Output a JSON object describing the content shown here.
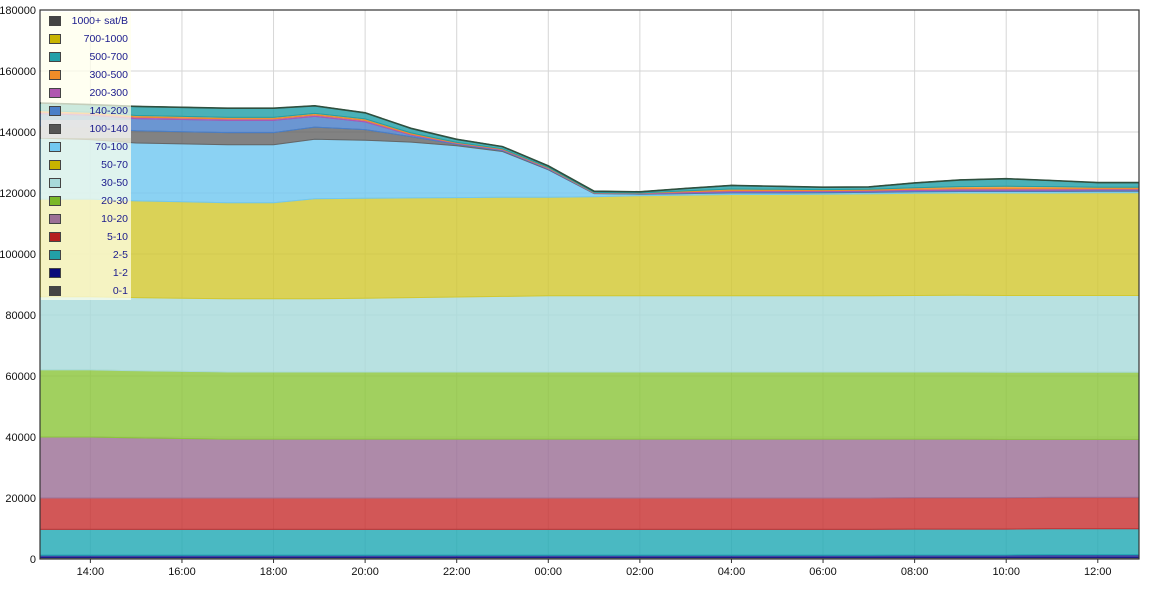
{
  "chart_data": {
    "type": "area",
    "stacked": true,
    "title": "",
    "xlabel": "",
    "ylabel": "",
    "ylim": [
      0,
      180000
    ],
    "yticks": [
      0,
      20000,
      40000,
      60000,
      80000,
      100000,
      120000,
      140000,
      160000,
      180000
    ],
    "ytick_labels": [
      "0",
      "20000",
      "40000",
      "60000",
      "80000",
      "100000",
      "120000",
      "140000",
      "160000",
      "180000"
    ],
    "xlim": [
      12.9,
      36.9
    ],
    "xticks": [
      14,
      16,
      18,
      20,
      22,
      24,
      26,
      28,
      30,
      32,
      34,
      36
    ],
    "xtick_labels": [
      "14:00",
      "16:00",
      "18:00",
      "20:00",
      "22:00",
      "00:00",
      "02:00",
      "04:00",
      "06:00",
      "08:00",
      "10:00",
      "12:00"
    ],
    "grid": true,
    "legend_position": "top-left",
    "x": [
      12.9,
      14,
      15,
      16,
      17,
      18,
      18.9,
      20,
      21,
      22,
      23,
      24,
      25,
      26,
      27,
      28,
      29,
      30,
      31,
      32,
      33,
      34,
      35,
      36,
      36.9
    ],
    "series": [
      {
        "name": "0-1",
        "color": "#555555",
        "values": [
          500,
          500,
          500,
          500,
          500,
          500,
          500,
          500,
          500,
          500,
          500,
          500,
          500,
          500,
          500,
          500,
          500,
          500,
          500,
          500,
          500,
          500,
          500,
          500,
          500
        ]
      },
      {
        "name": "1-2",
        "color": "#1a1a8c",
        "values": [
          700,
          700,
          700,
          700,
          700,
          700,
          700,
          700,
          700,
          700,
          700,
          700,
          700,
          700,
          700,
          700,
          700,
          700,
          700,
          800,
          800,
          800,
          900,
          900,
          900
        ]
      },
      {
        "name": "2-5",
        "color": "#22a9b5",
        "values": [
          8500,
          8500,
          8500,
          8500,
          8500,
          8500,
          8500,
          8500,
          8500,
          8500,
          8500,
          8500,
          8500,
          8500,
          8500,
          8500,
          8500,
          8500,
          8500,
          8500,
          8500,
          8500,
          8500,
          8500,
          8500
        ]
      },
      {
        "name": "5-10",
        "color": "#c83232",
        "values": [
          10300,
          10300,
          10300,
          10300,
          10300,
          10300,
          10300,
          10300,
          10300,
          10300,
          10300,
          10300,
          10300,
          10300,
          10300,
          10300,
          10300,
          10300,
          10300,
          10300,
          10300,
          10300,
          10300,
          10300,
          10300
        ]
      },
      {
        "name": "10-20",
        "color": "#9c7096",
        "values": [
          20000,
          20000,
          19700,
          19500,
          19300,
          19300,
          19300,
          19300,
          19300,
          19300,
          19300,
          19300,
          19300,
          19300,
          19300,
          19300,
          19300,
          19300,
          19300,
          19200,
          19200,
          19100,
          19000,
          19000,
          19000
        ]
      },
      {
        "name": "20-30",
        "color": "#8cc63c",
        "values": [
          22000,
          22000,
          22000,
          22000,
          22000,
          22000,
          22000,
          22000,
          22000,
          22000,
          22000,
          22000,
          22000,
          22000,
          22000,
          22000,
          22000,
          22000,
          22000,
          22000,
          22000,
          22000,
          22000,
          22000,
          22000
        ]
      },
      {
        "name": "30-50",
        "color": "#a8dada",
        "values": [
          24000,
          24000,
          24000,
          24000,
          24000,
          24000,
          24000,
          24200,
          24400,
          24600,
          24800,
          25000,
          25000,
          25000,
          25000,
          25000,
          25000,
          25000,
          25000,
          25100,
          25200,
          25200,
          25200,
          25200,
          25200
        ]
      },
      {
        "name": "50-70",
        "color": "#d2c832",
        "values": [
          32000,
          32000,
          31700,
          31600,
          31500,
          31500,
          32800,
          32800,
          32700,
          32600,
          32500,
          32300,
          32500,
          32800,
          33000,
          33200,
          33200,
          33300,
          33400,
          33500,
          33500,
          33600,
          33600,
          33700,
          33700
        ]
      },
      {
        "name": "70-100",
        "color": "#72c8f0",
        "values": [
          20000,
          19500,
          19000,
          19000,
          19000,
          19000,
          19500,
          19000,
          18300,
          17000,
          15000,
          9000,
          1000,
          500,
          500,
          500,
          500,
          500,
          500,
          500,
          500,
          500,
          500,
          500,
          500
        ]
      },
      {
        "name": "100-140",
        "color": "#666666",
        "values": [
          4000,
          4000,
          4000,
          4000,
          4000,
          4000,
          4000,
          3500,
          1800,
          500,
          300,
          200,
          100,
          100,
          100,
          100,
          100,
          100,
          100,
          100,
          100,
          100,
          100,
          100,
          100
        ]
      },
      {
        "name": "140-200",
        "color": "#4a7fc8",
        "values": [
          4000,
          4000,
          4000,
          4000,
          4000,
          4000,
          3500,
          2500,
          500,
          200,
          200,
          200,
          100,
          100,
          200,
          300,
          300,
          300,
          300,
          300,
          300,
          300,
          300,
          300,
          300
        ]
      },
      {
        "name": "200-300",
        "color": "#b056b0",
        "values": [
          500,
          500,
          500,
          500,
          500,
          500,
          500,
          500,
          300,
          200,
          200,
          200,
          100,
          100,
          300,
          400,
          400,
          300,
          300,
          400,
          500,
          500,
          500,
          400,
          400
        ]
      },
      {
        "name": "300-500",
        "color": "#f08c28",
        "values": [
          500,
          500,
          500,
          500,
          500,
          500,
          500,
          500,
          400,
          200,
          200,
          200,
          100,
          100,
          300,
          500,
          400,
          300,
          300,
          500,
          700,
          800,
          700,
          500,
          500
        ]
      },
      {
        "name": "500-700",
        "color": "#22a0a8",
        "values": [
          2500,
          2500,
          3000,
          3000,
          3000,
          3000,
          2500,
          2000,
          1500,
          1000,
          700,
          500,
          400,
          400,
          800,
          1200,
          1000,
          800,
          800,
          1600,
          2200,
          2500,
          2000,
          1500,
          1500
        ]
      },
      {
        "name": "700-1000",
        "color": "#c8b400",
        "values": [
          0,
          0,
          0,
          0,
          0,
          0,
          0,
          0,
          0,
          0,
          0,
          0,
          0,
          0,
          0,
          0,
          0,
          0,
          0,
          0,
          0,
          0,
          0,
          0,
          0
        ]
      },
      {
        "name": "1000+ sat/B",
        "color": "#444444",
        "values": [
          0,
          0,
          0,
          0,
          0,
          0,
          0,
          0,
          0,
          0,
          0,
          0,
          0,
          0,
          0,
          0,
          0,
          0,
          0,
          0,
          0,
          0,
          0,
          0,
          0
        ]
      }
    ]
  },
  "legend": {
    "items": [
      {
        "label": "1000+ sat/B",
        "color": "#444444"
      },
      {
        "label": "700-1000",
        "color": "#c8b400"
      },
      {
        "label": "500-700",
        "color": "#22a0a8"
      },
      {
        "label": "300-500",
        "color": "#f08c28"
      },
      {
        "label": "200-300",
        "color": "#b056b0"
      },
      {
        "label": "140-200",
        "color": "#4a7fc8"
      },
      {
        "label": "100-140",
        "color": "#555555",
        "highlight": true
      },
      {
        "label": "70-100",
        "color": "#72c8f0"
      },
      {
        "label": "50-70",
        "color": "#c8b400"
      },
      {
        "label": "30-50",
        "color": "#a8dada"
      },
      {
        "label": "20-30",
        "color": "#7ab828"
      },
      {
        "label": "10-20",
        "color": "#9c7096"
      },
      {
        "label": "5-10",
        "color": "#b41e1e"
      },
      {
        "label": "2-5",
        "color": "#22a0a8"
      },
      {
        "label": "1-2",
        "color": "#0a0a7a"
      },
      {
        "label": "0-1",
        "color": "#444444"
      }
    ]
  }
}
